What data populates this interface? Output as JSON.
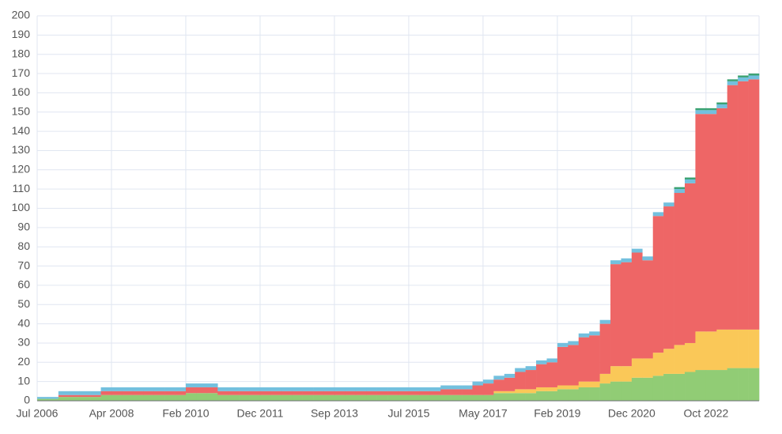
{
  "chart_data": {
    "type": "stacked-bar",
    "categories": [
      "Jul 2006",
      null,
      null,
      null,
      null,
      null,
      null,
      "Apr 2008",
      null,
      null,
      null,
      null,
      null,
      null,
      "Feb 2010",
      null,
      null,
      null,
      null,
      null,
      null,
      "Dec 2011",
      null,
      null,
      null,
      null,
      null,
      null,
      "Sep 2013",
      null,
      null,
      null,
      null,
      null,
      null,
      "Jul 2015",
      null,
      null,
      null,
      null,
      null,
      null,
      "May 2017",
      null,
      null,
      null,
      null,
      null,
      null,
      "Feb 2019",
      null,
      null,
      null,
      null,
      null,
      null,
      "Dec 2020",
      null,
      null,
      null,
      null,
      null,
      null,
      "Oct 2022",
      null,
      null,
      null,
      null
    ],
    "series": [
      {
        "color": "#91cc75",
        "values": [
          1,
          1,
          2,
          2,
          2,
          2,
          3,
          3,
          3,
          3,
          3,
          3,
          3,
          3,
          4,
          4,
          4,
          3,
          3,
          3,
          3,
          3,
          3,
          3,
          3,
          3,
          3,
          3,
          3,
          3,
          3,
          3,
          3,
          3,
          3,
          3,
          3,
          3,
          3,
          3,
          3,
          3,
          3,
          4,
          4,
          4,
          4,
          5,
          5,
          6,
          6,
          7,
          7,
          9,
          10,
          10,
          12,
          12,
          13,
          14,
          14,
          15,
          16,
          16,
          16,
          17,
          17,
          17
        ]
      },
      {
        "color": "#fac858",
        "values": [
          0,
          0,
          0,
          0,
          0,
          0,
          0,
          0,
          0,
          0,
          0,
          0,
          0,
          0,
          0,
          0,
          0,
          0,
          0,
          0,
          0,
          0,
          0,
          0,
          0,
          0,
          0,
          0,
          0,
          0,
          0,
          0,
          0,
          0,
          0,
          0,
          0,
          0,
          0,
          0,
          0,
          0,
          0,
          1,
          1,
          2,
          2,
          2,
          2,
          2,
          2,
          3,
          3,
          5,
          8,
          8,
          10,
          10,
          12,
          13,
          15,
          15,
          20,
          20,
          21,
          20,
          20,
          20
        ]
      },
      {
        "color": "#ee6666",
        "values": [
          0,
          0,
          1,
          1,
          1,
          1,
          2,
          2,
          2,
          2,
          2,
          2,
          2,
          2,
          3,
          3,
          3,
          2,
          2,
          2,
          2,
          2,
          2,
          2,
          2,
          2,
          2,
          2,
          2,
          2,
          2,
          2,
          2,
          2,
          2,
          2,
          2,
          2,
          3,
          3,
          3,
          5,
          6,
          6,
          7,
          9,
          10,
          12,
          13,
          20,
          21,
          23,
          24,
          26,
          53,
          54,
          55,
          51,
          71,
          74,
          79,
          83,
          113,
          113,
          115,
          127,
          129,
          130
        ]
      },
      {
        "color": "#73c0de",
        "values": [
          1,
          1,
          2,
          2,
          2,
          2,
          2,
          2,
          2,
          2,
          2,
          2,
          2,
          2,
          2,
          2,
          2,
          2,
          2,
          2,
          2,
          2,
          2,
          2,
          2,
          2,
          2,
          2,
          2,
          2,
          2,
          2,
          2,
          2,
          2,
          2,
          2,
          2,
          2,
          2,
          2,
          2,
          2,
          2,
          2,
          2,
          2,
          2,
          2,
          2,
          2,
          2,
          2,
          2,
          2,
          2,
          2,
          2,
          2,
          2,
          2,
          2,
          2,
          2,
          2,
          2,
          2,
          2
        ]
      },
      {
        "color": "#3ba272",
        "values": [
          0,
          0,
          0,
          0,
          0,
          0,
          0,
          0,
          0,
          0,
          0,
          0,
          0,
          0,
          0,
          0,
          0,
          0,
          0,
          0,
          0,
          0,
          0,
          0,
          0,
          0,
          0,
          0,
          0,
          0,
          0,
          0,
          0,
          0,
          0,
          0,
          0,
          0,
          0,
          0,
          0,
          0,
          0,
          0,
          0,
          0,
          0,
          0,
          0,
          0,
          0,
          0,
          0,
          0,
          0,
          0,
          0,
          0,
          0,
          0,
          1,
          1,
          1,
          1,
          1,
          1,
          1,
          1
        ]
      }
    ],
    "ylim": [
      0,
      200
    ],
    "yticks": [
      0,
      10,
      20,
      30,
      40,
      50,
      60,
      70,
      80,
      90,
      100,
      110,
      120,
      130,
      140,
      150,
      160,
      170,
      180,
      190,
      200
    ],
    "grid": true
  }
}
